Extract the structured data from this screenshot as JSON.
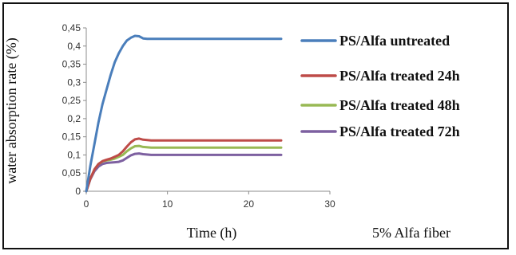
{
  "chart_data": {
    "type": "line",
    "xlabel": "Time (h)",
    "ylabel": "water absorption rate (%)",
    "xlim": [
      0,
      30
    ],
    "ylim": [
      0,
      0.45
    ],
    "xticks": [
      "0",
      "10",
      "20",
      "30"
    ],
    "yticks": [
      "0",
      "0,05",
      "0,1",
      "0,15",
      "0,2",
      "0,25",
      "0,3",
      "0,35",
      "0,4",
      "0,45"
    ],
    "grid": false,
    "legend_position": "right",
    "annotation": "5% Alfa fiber",
    "series": [
      {
        "name": "PS/Alfa untreated",
        "color": "#4a7ebb",
        "x": [
          0,
          0.5,
          1,
          1.5,
          2,
          2.5,
          3,
          3.5,
          4,
          4.5,
          5,
          5.5,
          6,
          6.5,
          7,
          7.5,
          8,
          10,
          15,
          20,
          24
        ],
        "y": [
          0,
          0.07,
          0.13,
          0.19,
          0.24,
          0.28,
          0.32,
          0.355,
          0.38,
          0.4,
          0.415,
          0.423,
          0.428,
          0.427,
          0.421,
          0.42,
          0.42,
          0.42,
          0.42,
          0.42,
          0.42
        ]
      },
      {
        "name": "PS/Alfa treated 24h",
        "color": "#be4b48",
        "x": [
          0,
          0.5,
          1,
          1.5,
          2,
          2.5,
          3,
          3.5,
          4,
          4.5,
          5,
          5.5,
          6,
          6.5,
          7,
          8,
          10,
          15,
          20,
          24
        ],
        "y": [
          0,
          0.035,
          0.06,
          0.075,
          0.083,
          0.087,
          0.09,
          0.095,
          0.1,
          0.11,
          0.123,
          0.135,
          0.143,
          0.145,
          0.142,
          0.14,
          0.14,
          0.14,
          0.14,
          0.14
        ]
      },
      {
        "name": "PS/Alfa treated 48h",
        "color": "#98b954",
        "x": [
          0,
          0.5,
          1,
          1.5,
          2,
          2.5,
          3,
          3.5,
          4,
          4.5,
          5,
          5.5,
          6,
          6.5,
          7,
          8,
          10,
          15,
          20,
          24
        ],
        "y": [
          0,
          0.035,
          0.06,
          0.075,
          0.082,
          0.085,
          0.087,
          0.09,
          0.095,
          0.1,
          0.11,
          0.118,
          0.124,
          0.125,
          0.122,
          0.12,
          0.12,
          0.12,
          0.12,
          0.12
        ]
      },
      {
        "name": "PS/Alfa treated 72h",
        "color": "#7d60a0",
        "x": [
          0,
          0.5,
          1,
          1.5,
          2,
          2.5,
          3,
          3.5,
          4,
          4.5,
          5,
          5.5,
          6,
          6.5,
          7,
          8,
          10,
          15,
          20,
          24
        ],
        "y": [
          0,
          0.033,
          0.055,
          0.068,
          0.075,
          0.078,
          0.079,
          0.08,
          0.081,
          0.085,
          0.092,
          0.099,
          0.103,
          0.104,
          0.102,
          0.1,
          0.1,
          0.1,
          0.1,
          0.1
        ]
      }
    ]
  }
}
